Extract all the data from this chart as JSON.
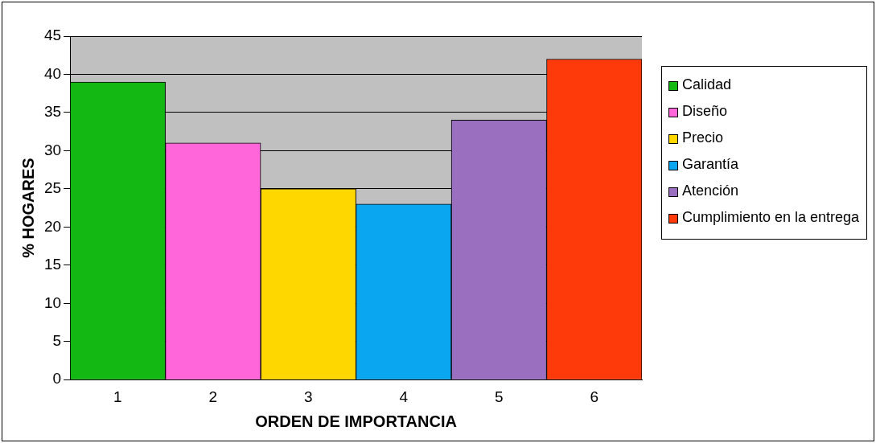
{
  "chart_data": {
    "type": "bar",
    "xlabel": "ORDEN DE IMPORTANCIA",
    "ylabel": "% HOGARES",
    "categories": [
      "1",
      "2",
      "3",
      "4",
      "5",
      "6"
    ],
    "series": [
      {
        "name": "Calidad",
        "color": "#13b813",
        "values": [
          39,
          null,
          null,
          null,
          null,
          null
        ]
      },
      {
        "name": "Diseño",
        "color": "#ff66d9",
        "values": [
          null,
          31,
          null,
          null,
          null,
          null
        ]
      },
      {
        "name": "Precio",
        "color": "#ffd700",
        "values": [
          null,
          null,
          25,
          null,
          null,
          null
        ]
      },
      {
        "name": "Garantía",
        "color": "#0aa6f0",
        "values": [
          null,
          null,
          null,
          23,
          null,
          null
        ]
      },
      {
        "name": "Atención",
        "color": "#9a6fbf",
        "values": [
          null,
          null,
          null,
          null,
          34,
          null
        ]
      },
      {
        "name": "Cumplimiento en la entrega",
        "color": "#ff3a0a",
        "values": [
          null,
          null,
          null,
          null,
          null,
          42
        ]
      }
    ],
    "ylim": [
      0,
      45
    ],
    "yticks": [
      0,
      5,
      10,
      15,
      20,
      25,
      30,
      35,
      40,
      45
    ],
    "grid": "y",
    "legend": "right"
  }
}
